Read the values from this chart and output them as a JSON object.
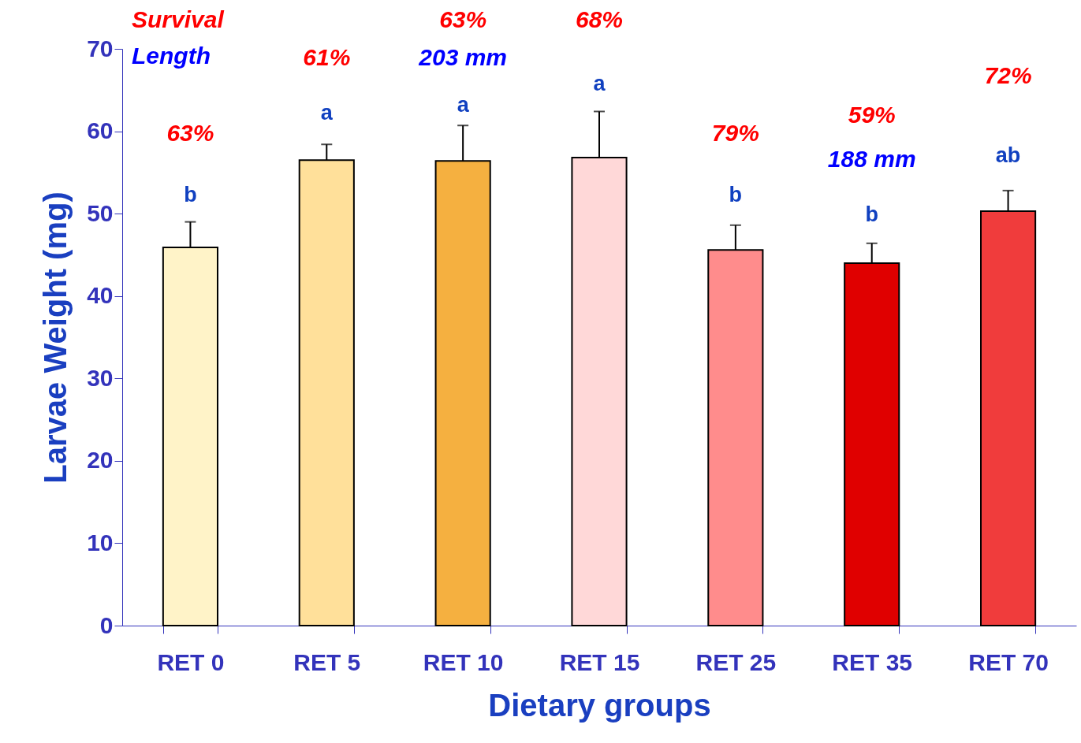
{
  "chart_data": {
    "type": "bar",
    "xlabel": "Dietary groups",
    "ylabel": "Larvae Weight (mg)",
    "categories": [
      "RET 0",
      "RET 5",
      "RET 10",
      "RET 15",
      "RET 25",
      "RET 35",
      "RET 70"
    ],
    "values": [
      45.9,
      56.5,
      56.4,
      56.8,
      45.6,
      44.0,
      50.3
    ],
    "colors": [
      "#fff3c8",
      "#ffe09a",
      "#f5b040",
      "#ffd8d8",
      "#ff8c8c",
      "#e00000",
      "#f03c3c"
    ],
    "errors": [
      [
        45.9,
        49.0
      ],
      [
        56.5,
        58.4
      ],
      [
        56.4,
        60.7
      ],
      [
        56.8,
        62.4
      ],
      [
        45.6,
        48.6
      ],
      [
        44.0,
        46.4
      ],
      [
        50.3,
        52.8
      ]
    ],
    "ylim": [
      0,
      70
    ],
    "yticks": [
      0,
      10,
      20,
      30,
      40,
      50,
      60,
      70
    ],
    "grid": false,
    "annotations": [
      "Survival",
      "Length",
      "63%",
      "61%",
      "63%",
      "203 mm",
      "68%",
      "79%",
      "59%",
      "188 mm",
      "72%",
      "b",
      "a",
      "a",
      "a",
      "b",
      "b",
      "ab"
    ]
  }
}
